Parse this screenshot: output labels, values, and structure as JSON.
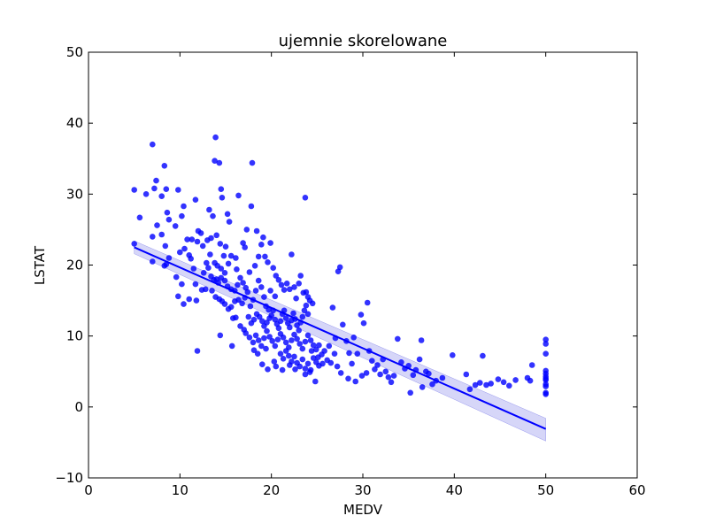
{
  "chart_data": {
    "type": "scatter",
    "title": "ujemnie skorelowane",
    "xlabel": "MEDV",
    "ylabel": "LSTAT",
    "xlim": [
      0,
      60
    ],
    "ylim": [
      -10,
      50
    ],
    "xticks": [
      0,
      10,
      20,
      30,
      40,
      50,
      60
    ],
    "yticks": [
      -10,
      0,
      10,
      20,
      30,
      40,
      50
    ],
    "xtick_labels": [
      "0",
      "10",
      "20",
      "30",
      "40",
      "50",
      "60"
    ],
    "ytick_labels": [
      "−10",
      "0",
      "10",
      "20",
      "30",
      "40",
      "50"
    ],
    "grid": false,
    "colors": {
      "points": "#0000ff",
      "regression_line": "#0000ff",
      "confidence_band": "#9999ee"
    },
    "regression": {
      "x": [
        5,
        50
      ],
      "y": [
        22.5,
        -3.1
      ],
      "ci_lower": [
        21.6,
        -4.8
      ],
      "ci_upper": [
        23.4,
        -1.6
      ]
    },
    "points": [
      [
        5,
        23
      ],
      [
        5,
        30.6
      ],
      [
        5.6,
        26.7
      ],
      [
        6.3,
        30
      ],
      [
        7,
        37
      ],
      [
        7,
        24
      ],
      [
        7.2,
        30.8
      ],
      [
        7.4,
        31.9
      ],
      [
        7,
        20.5
      ],
      [
        7.5,
        25.6
      ],
      [
        8,
        29.7
      ],
      [
        8.3,
        34
      ],
      [
        8.4,
        22.7
      ],
      [
        8.6,
        27.4
      ],
      [
        8.8,
        26.4
      ],
      [
        8.5,
        30.7
      ],
      [
        8.3,
        19.9
      ],
      [
        8.5,
        20.1
      ],
      [
        8.8,
        21
      ],
      [
        8,
        24.3
      ],
      [
        9.5,
        25.5
      ],
      [
        9.8,
        30.6
      ],
      [
        10.2,
        26.9
      ],
      [
        10.4,
        28.3
      ],
      [
        10.8,
        23.6
      ],
      [
        11.3,
        23.6
      ],
      [
        11.7,
        29.2
      ],
      [
        11.9,
        23.3
      ],
      [
        12,
        24.8
      ],
      [
        12.3,
        24.5
      ],
      [
        10,
        21.8
      ],
      [
        10.5,
        22.3
      ],
      [
        10.2,
        17.3
      ],
      [
        9.6,
        18.3
      ],
      [
        11,
        21.4
      ],
      [
        11.2,
        20.9
      ],
      [
        11.5,
        19.5
      ],
      [
        11.7,
        17.3
      ],
      [
        12.6,
        18.9
      ],
      [
        12.8,
        16.6
      ],
      [
        10.4,
        14.5
      ],
      [
        11,
        15.2
      ],
      [
        11.8,
        15
      ],
      [
        12.4,
        16.5
      ],
      [
        9.8,
        15.6
      ],
      [
        12.5,
        22.7
      ],
      [
        13,
        23.5
      ],
      [
        13.2,
        27.8
      ],
      [
        13.4,
        23.8
      ],
      [
        13.6,
        26.9
      ],
      [
        13.9,
        38
      ],
      [
        13.8,
        34.7
      ],
      [
        14.3,
        34.4
      ],
      [
        14.5,
        30.7
      ],
      [
        14.6,
        29.5
      ],
      [
        15.2,
        27.2
      ],
      [
        15.4,
        26.1
      ],
      [
        14,
        24.2
      ],
      [
        14.4,
        23
      ],
      [
        14.8,
        21.3
      ],
      [
        13.3,
        21.5
      ],
      [
        13.8,
        20.3
      ],
      [
        14.1,
        19.9
      ],
      [
        14.5,
        19.5
      ],
      [
        14.9,
        18.9
      ],
      [
        15.3,
        20.2
      ],
      [
        15.6,
        21.3
      ],
      [
        13.4,
        18.4
      ],
      [
        13.7,
        17.9
      ],
      [
        14,
        18
      ],
      [
        14.2,
        17.5
      ],
      [
        14.5,
        18.2
      ],
      [
        14.9,
        17.8
      ],
      [
        15.2,
        17
      ],
      [
        15.6,
        16.6
      ],
      [
        16,
        16.4
      ],
      [
        16.3,
        17.2
      ],
      [
        16.6,
        18.2
      ],
      [
        16.9,
        17.5
      ],
      [
        17.2,
        16.8
      ],
      [
        13.5,
        16.4
      ],
      [
        13.9,
        15.5
      ],
      [
        14.3,
        15.2
      ],
      [
        14.6,
        14.9
      ],
      [
        14.9,
        14.5
      ],
      [
        15.3,
        13.8
      ],
      [
        15.6,
        14.1
      ],
      [
        16,
        14.9
      ],
      [
        16.4,
        15.1
      ],
      [
        16.8,
        14.6
      ],
      [
        17.1,
        15.4
      ],
      [
        17.4,
        16.2
      ],
      [
        17.7,
        14.2
      ],
      [
        18,
        15.1
      ],
      [
        18.3,
        16.4
      ],
      [
        18.6,
        17.8
      ],
      [
        18.9,
        16.9
      ],
      [
        19.2,
        15.5
      ],
      [
        19.4,
        14.2
      ],
      [
        19.7,
        13.7
      ],
      [
        16.4,
        29.8
      ],
      [
        16.9,
        23.1
      ],
      [
        17.3,
        25
      ],
      [
        17.8,
        28.3
      ],
      [
        17.9,
        34.4
      ],
      [
        18.4,
        24.8
      ],
      [
        18.6,
        21.2
      ],
      [
        18.9,
        22.9
      ],
      [
        19.1,
        23.9
      ],
      [
        19.3,
        21.2
      ],
      [
        19.6,
        20.4
      ],
      [
        19.9,
        23.1
      ],
      [
        20.2,
        19.6
      ],
      [
        20.5,
        18.5
      ],
      [
        20.8,
        17.9
      ],
      [
        21.1,
        17.2
      ],
      [
        21.4,
        16.5
      ],
      [
        21.7,
        17.4
      ],
      [
        22,
        16.6
      ],
      [
        22.2,
        21.5
      ],
      [
        22.5,
        16.9
      ],
      [
        22.7,
        15.3
      ],
      [
        23,
        17.4
      ],
      [
        23.2,
        18.5
      ],
      [
        23.5,
        16.1
      ],
      [
        23.7,
        29.5
      ],
      [
        23.8,
        16.2
      ],
      [
        24,
        15.5
      ],
      [
        24.2,
        15
      ],
      [
        24.5,
        14.6
      ],
      [
        17.5,
        12.7
      ],
      [
        17.8,
        11.8
      ],
      [
        18.1,
        12.3
      ],
      [
        18.4,
        13.1
      ],
      [
        18.7,
        12.7
      ],
      [
        19,
        12.1
      ],
      [
        19.2,
        11.4
      ],
      [
        19.5,
        11.9
      ],
      [
        19.8,
        12.5
      ],
      [
        20,
        12.9
      ],
      [
        20.2,
        13.6
      ],
      [
        20.4,
        12.3
      ],
      [
        20.6,
        11.7
      ],
      [
        20.8,
        11.1
      ],
      [
        21,
        12.1
      ],
      [
        21.2,
        13.1
      ],
      [
        21.4,
        13.6
      ],
      [
        21.6,
        12.5
      ],
      [
        21.8,
        11.8
      ],
      [
        22,
        11.2
      ],
      [
        22.2,
        12.2
      ],
      [
        22.4,
        13.2
      ],
      [
        22.6,
        12.4
      ],
      [
        22.8,
        11.5
      ],
      [
        23,
        10.8
      ],
      [
        23.2,
        11.9
      ],
      [
        23.4,
        12.7
      ],
      [
        23.6,
        13.6
      ],
      [
        23.8,
        14.3
      ],
      [
        24,
        13.1
      ],
      [
        17.2,
        10.4
      ],
      [
        17.6,
        9.8
      ],
      [
        18,
        9.1
      ],
      [
        18.3,
        10.1
      ],
      [
        18.6,
        9.4
      ],
      [
        18.9,
        8.6
      ],
      [
        19.2,
        9.7
      ],
      [
        19.5,
        10.7
      ],
      [
        19.8,
        9.9
      ],
      [
        20.1,
        9.3
      ],
      [
        20.4,
        8.6
      ],
      [
        20.7,
        9.5
      ],
      [
        21,
        10.3
      ],
      [
        21.3,
        9.8
      ],
      [
        21.6,
        9.1
      ],
      [
        21.9,
        8.4
      ],
      [
        22.2,
        9.4
      ],
      [
        22.5,
        10.2
      ],
      [
        22.8,
        9.6
      ],
      [
        23.1,
        8.9
      ],
      [
        23.4,
        8.2
      ],
      [
        23.7,
        9.2
      ],
      [
        24,
        10.1
      ],
      [
        24.3,
        9.4
      ],
      [
        24.6,
        8.7
      ],
      [
        24.9,
        8.1
      ],
      [
        25.2,
        8.7
      ],
      [
        25.5,
        7.4
      ],
      [
        25.8,
        7.9
      ],
      [
        26.1,
        6.6
      ],
      [
        21,
        7.5
      ],
      [
        21.3,
        6.8
      ],
      [
        21.6,
        7.9
      ],
      [
        21.9,
        7.2
      ],
      [
        22.2,
        6.4
      ],
      [
        22.5,
        7.1
      ],
      [
        22.8,
        6.2
      ],
      [
        23.1,
        5.7
      ],
      [
        23.4,
        6.7
      ],
      [
        23.7,
        5.4
      ],
      [
        24,
        6.1
      ],
      [
        24.3,
        5.2
      ],
      [
        24.6,
        6.9
      ],
      [
        24.9,
        6.3
      ],
      [
        25.2,
        5.8
      ],
      [
        23.7,
        4.6
      ],
      [
        24.8,
        3.6
      ],
      [
        24.2,
        4.9
      ],
      [
        22.6,
        5.3
      ],
      [
        20.5,
        5.7
      ],
      [
        27,
        9.7
      ],
      [
        27.3,
        19.1
      ],
      [
        27.5,
        19.7
      ],
      [
        27.8,
        11.6
      ],
      [
        26.7,
        14
      ],
      [
        28.2,
        9.3
      ],
      [
        28.5,
        7.6
      ],
      [
        28.8,
        6.1
      ],
      [
        29,
        9.8
      ],
      [
        29.4,
        7.5
      ],
      [
        29.8,
        13
      ],
      [
        30.1,
        11.8
      ],
      [
        30.5,
        14.7
      ],
      [
        30.7,
        7.9
      ],
      [
        31,
        6.5
      ],
      [
        31.3,
        5.3
      ],
      [
        31.6,
        5.9
      ],
      [
        31.9,
        4.6
      ],
      [
        32.2,
        6.7
      ],
      [
        32.5,
        5
      ],
      [
        32.8,
        4.2
      ],
      [
        33.1,
        3.5
      ],
      [
        33.4,
        4.4
      ],
      [
        33.8,
        9.6
      ],
      [
        34.2,
        6.3
      ],
      [
        34.6,
        5.4
      ],
      [
        35,
        5.8
      ],
      [
        35.2,
        2
      ],
      [
        35.5,
        4.5
      ],
      [
        35.8,
        5.2
      ],
      [
        36.2,
        6.7
      ],
      [
        36.4,
        9.4
      ],
      [
        36.5,
        2.8
      ],
      [
        36.9,
        5
      ],
      [
        37.2,
        4.7
      ],
      [
        37.6,
        3.2
      ],
      [
        38,
        3.7
      ],
      [
        38.7,
        4.1
      ],
      [
        39.8,
        7.3
      ],
      [
        41.3,
        4.6
      ],
      [
        41.7,
        2.5
      ],
      [
        42.3,
        3.1
      ],
      [
        42.8,
        3.4
      ],
      [
        43.1,
        7.2
      ],
      [
        43.5,
        3.1
      ],
      [
        44,
        3.3
      ],
      [
        44.8,
        3.9
      ],
      [
        45.4,
        3.5
      ],
      [
        46,
        3
      ],
      [
        46.7,
        3.8
      ],
      [
        48,
        4.1
      ],
      [
        48.3,
        3.7
      ],
      [
        48.5,
        5.9
      ],
      [
        26.5,
        6.2
      ],
      [
        27.2,
        5.7
      ],
      [
        27.6,
        4.8
      ],
      [
        28.4,
        4
      ],
      [
        29.2,
        3.6
      ],
      [
        29.9,
        4.4
      ],
      [
        30.4,
        4.8
      ],
      [
        50,
        9.5
      ],
      [
        50,
        8.9
      ],
      [
        50,
        7.5
      ],
      [
        50,
        5.1
      ],
      [
        50,
        4.7
      ],
      [
        50,
        4.3
      ],
      [
        50,
        3.8
      ],
      [
        50,
        3.2
      ],
      [
        50,
        2.9
      ],
      [
        50,
        2
      ],
      [
        50,
        1.8
      ],
      [
        50,
        4.0
      ],
      [
        19,
        6
      ],
      [
        19.6,
        5.3
      ],
      [
        20.3,
        6.4
      ],
      [
        21.2,
        5.2
      ],
      [
        22,
        5.9
      ],
      [
        24.4,
        7.9
      ],
      [
        25.1,
        7
      ],
      [
        25.6,
        6.1
      ],
      [
        26.3,
        8.6
      ],
      [
        26.9,
        7.5
      ],
      [
        15,
        22.6
      ],
      [
        16.1,
        21
      ],
      [
        17.1,
        22.5
      ],
      [
        12.9,
        20.3
      ],
      [
        13.1,
        19.6
      ],
      [
        16.2,
        19.4
      ],
      [
        17.6,
        19
      ],
      [
        18.2,
        19.9
      ],
      [
        19.9,
        16.4
      ],
      [
        20.4,
        15.6
      ],
      [
        15.8,
        12.5
      ],
      [
        16.6,
        11.4
      ],
      [
        17,
        10.9
      ],
      [
        18.1,
        8
      ],
      [
        18.5,
        7.5
      ],
      [
        19.4,
        8.2
      ],
      [
        11.9,
        7.9
      ],
      [
        14.4,
        10.1
      ],
      [
        15.7,
        8.6
      ],
      [
        16.1,
        12.6
      ]
    ]
  }
}
